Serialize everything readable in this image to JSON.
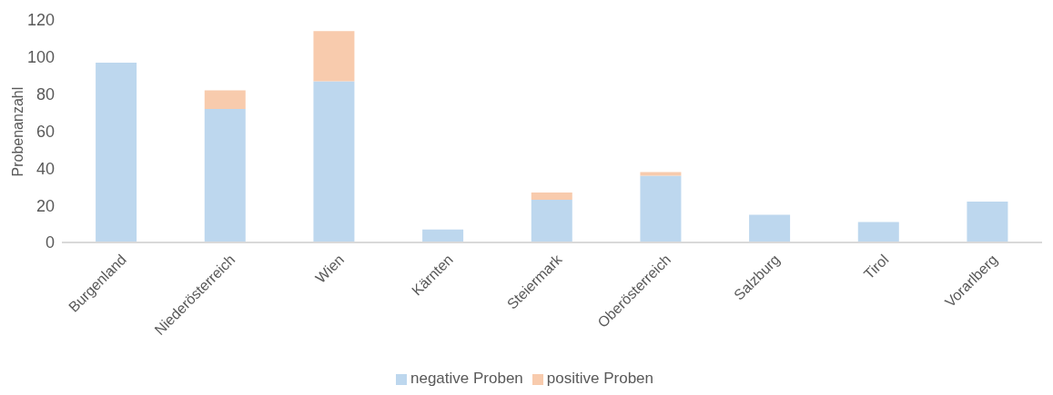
{
  "chart_data": {
    "type": "bar",
    "stacked": true,
    "ylabel": "Probenanzahl",
    "categories": [
      "Burgenland",
      "Niederösterreich",
      "Wien",
      "Kärnten",
      "Steiermark",
      "Oberösterreich",
      "Salzburg",
      "Tirol",
      "Vorarlberg"
    ],
    "series": [
      {
        "name": "negative Proben",
        "color": "#bdd7ee",
        "values": [
          97,
          72,
          87,
          7,
          23,
          36,
          15,
          11,
          22
        ]
      },
      {
        "name": "positive Proben",
        "color": "#f8cbad",
        "values": [
          0,
          10,
          27,
          0,
          4,
          2,
          0,
          0,
          0
        ]
      }
    ],
    "ylim": [
      0,
      120
    ],
    "yticks": [
      0,
      20,
      40,
      60,
      80,
      100,
      120
    ],
    "grid": false,
    "legend": "bottom"
  }
}
